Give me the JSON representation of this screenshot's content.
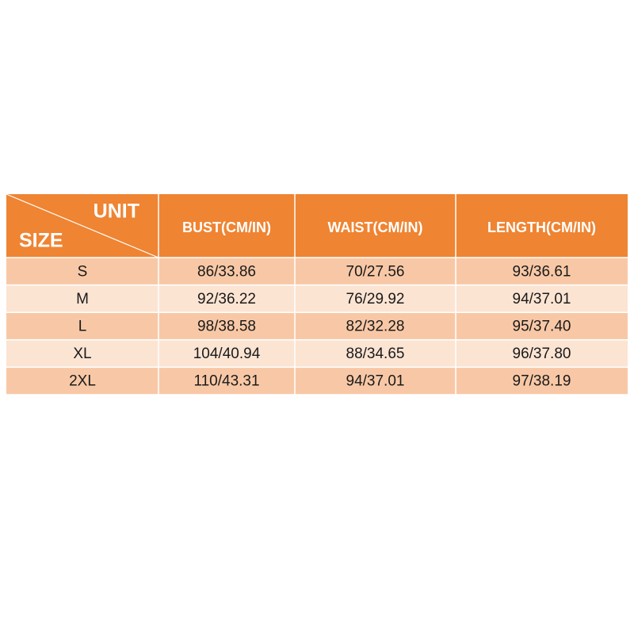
{
  "table": {
    "corner_top": "UNIT",
    "corner_bottom": "SIZE",
    "header": [
      "BUST(CM/IN)",
      "WAIST(CM/IN)",
      "LENGTH(CM/IN)"
    ],
    "rows": [
      [
        "S",
        "86/33.86",
        "70/27.56",
        "93/36.61"
      ],
      [
        "M",
        "92/36.22",
        "76/29.92",
        "94/37.01"
      ],
      [
        "L",
        "98/38.58",
        "82/32.28",
        "95/37.40"
      ],
      [
        "XL",
        "104/40.94",
        "88/34.65",
        "96/37.80"
      ],
      [
        "2XL",
        "110/43.31",
        "94/37.01",
        "97/38.19"
      ]
    ]
  }
}
